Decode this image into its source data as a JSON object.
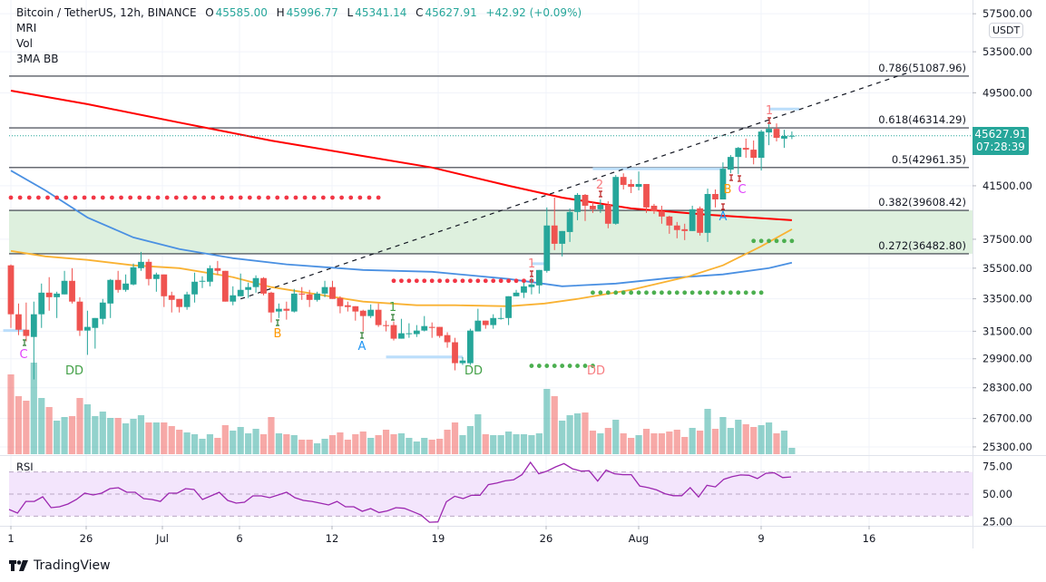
{
  "header": {
    "symbol": "Bitcoin / TetherUS, 12h, BINANCE",
    "o_label": "O",
    "o": "45585.00",
    "h_label": "H",
    "h": "45996.77",
    "l_label": "L",
    "l": "45341.14",
    "c_label": "C",
    "c": "45627.91",
    "change": "+42.92 (+0.09%)",
    "indicators": [
      "MRI",
      "Vol",
      "3MA BB"
    ]
  },
  "price_axis": {
    "currency_badge": "USDT",
    "ticks": [
      "57500.00",
      "53500.00",
      "49500.00",
      "41500.00",
      "37500.00",
      "35500.00",
      "33500.00",
      "31500.00",
      "29900.00",
      "28300.00",
      "26700.00",
      "25300.00"
    ],
    "last_price": "45627.91",
    "countdown": "07:28:39"
  },
  "rsi_pane": {
    "title": "RSI",
    "ticks": [
      "75.00",
      "50.00",
      "25.00"
    ]
  },
  "time_axis": {
    "labels": [
      "1",
      "26",
      "Jul",
      "6",
      "12",
      "19",
      "26",
      "Aug",
      "9",
      "16"
    ]
  },
  "brand": {
    "name": "TradingView"
  },
  "colors": {
    "up": "#26a69a",
    "down": "#ef5350",
    "ma_red": "#ff0000",
    "ma_blue": "#4a90e2",
    "ma_yellow": "#f9b233",
    "rsi": "#9c27b0",
    "fib_zone": "#dcefdc"
  },
  "chart_data": {
    "type": "candlestick",
    "title": "Bitcoin / TetherUS, 12h, BINANCE",
    "y_scale": "log",
    "ylim": [
      25000,
      58500
    ],
    "grid": true,
    "candles_ohlc": [
      [
        35690,
        35750,
        31700,
        32530
      ],
      [
        32530,
        33200,
        31270,
        31590
      ],
      [
        31590,
        33260,
        30900,
        31220
      ],
      [
        31160,
        33320,
        28750,
        32530
      ],
      [
        32530,
        34480,
        31700,
        33890
      ],
      [
        33890,
        34900,
        32750,
        33600
      ],
      [
        33600,
        33950,
        32300,
        33830
      ],
      [
        33780,
        35320,
        33780,
        34660
      ],
      [
        34660,
        35500,
        33200,
        33320
      ],
      [
        33320,
        33600,
        31220,
        31540
      ],
      [
        31540,
        32750,
        30120,
        31760
      ],
      [
        31700,
        32300,
        30480,
        32300
      ],
      [
        32250,
        33490,
        31920,
        33260
      ],
      [
        33200,
        34780,
        32300,
        34720
      ],
      [
        34720,
        35320,
        33890,
        34070
      ],
      [
        34070,
        35080,
        33950,
        34480
      ],
      [
        34420,
        35810,
        34360,
        35560
      ],
      [
        35500,
        36610,
        35320,
        35930
      ],
      [
        35930,
        36120,
        34360,
        34780
      ],
      [
        34780,
        35200,
        33950,
        35080
      ],
      [
        35080,
        35080,
        32980,
        33660
      ],
      [
        33720,
        33950,
        32640,
        33430
      ],
      [
        33490,
        33490,
        32640,
        32980
      ],
      [
        32980,
        33950,
        32810,
        33780
      ],
      [
        33780,
        35200,
        33260,
        34600
      ],
      [
        34600,
        34960,
        34190,
        34660
      ],
      [
        34600,
        35690,
        34300,
        35500
      ],
      [
        35500,
        35990,
        35080,
        35320
      ],
      [
        35320,
        35320,
        33320,
        33320
      ],
      [
        33320,
        34300,
        33090,
        33720
      ],
      [
        33660,
        35140,
        33660,
        34070
      ],
      [
        34070,
        34540,
        33550,
        34250
      ],
      [
        34250,
        35020,
        33890,
        34840
      ],
      [
        34840,
        34900,
        33720,
        33830
      ],
      [
        33890,
        33950,
        32030,
        32640
      ],
      [
        32700,
        33200,
        32300,
        32870
      ],
      [
        32870,
        33320,
        32200,
        32750
      ],
      [
        32700,
        34130,
        32640,
        33830
      ],
      [
        33830,
        34250,
        33430,
        33780
      ],
      [
        33780,
        34070,
        32980,
        33430
      ],
      [
        33430,
        33950,
        33320,
        33830
      ],
      [
        33830,
        34660,
        33600,
        34250
      ],
      [
        34250,
        34660,
        33490,
        33490
      ],
      [
        33550,
        33660,
        32590,
        33030
      ],
      [
        33090,
        33320,
        32700,
        32980
      ],
      [
        33030,
        33030,
        32140,
        32700
      ],
      [
        32750,
        32810,
        31490,
        32420
      ],
      [
        32420,
        33140,
        32300,
        32810
      ],
      [
        32810,
        33200,
        31760,
        31870
      ],
      [
        31870,
        32140,
        31490,
        31810
      ],
      [
        31870,
        32090,
        30950,
        31060
      ],
      [
        31060,
        32250,
        31060,
        31380
      ],
      [
        31330,
        31980,
        31110,
        31380
      ],
      [
        31330,
        31870,
        31160,
        31540
      ],
      [
        31540,
        32420,
        31490,
        31810
      ],
      [
        31760,
        32030,
        31110,
        31700
      ],
      [
        31760,
        31760,
        31110,
        31220
      ],
      [
        31270,
        31440,
        30530,
        30850
      ],
      [
        30850,
        31110,
        29250,
        29650
      ],
      [
        29650,
        30000,
        29550,
        29800
      ],
      [
        29650,
        31650,
        29550,
        31540
      ],
      [
        31490,
        32870,
        31490,
        32140
      ],
      [
        32140,
        32140,
        31650,
        31870
      ],
      [
        31870,
        32530,
        31650,
        32300
      ],
      [
        32250,
        32920,
        32200,
        32300
      ],
      [
        32300,
        33660,
        31870,
        33660
      ],
      [
        33660,
        34070,
        33660,
        33890
      ],
      [
        33890,
        34540,
        33550,
        34300
      ],
      [
        34250,
        34840,
        33780,
        34420
      ],
      [
        34360,
        35380,
        33830,
        35380
      ],
      [
        35320,
        39830,
        35200,
        38490
      ],
      [
        38490,
        40580,
        36740,
        37180
      ],
      [
        37180,
        38090,
        36300,
        38090
      ],
      [
        38020,
        39760,
        37310,
        39490
      ],
      [
        39490,
        40930,
        38880,
        40790
      ],
      [
        40790,
        40860,
        38820,
        39960
      ],
      [
        39960,
        40300,
        39420,
        39690
      ],
      [
        39690,
        40440,
        39420,
        40030
      ],
      [
        40030,
        40300,
        38290,
        38620
      ],
      [
        38620,
        42350,
        38550,
        42200
      ],
      [
        42200,
        42490,
        41210,
        41570
      ],
      [
        41640,
        42000,
        40930,
        41420
      ],
      [
        41420,
        42640,
        41140,
        41640
      ],
      [
        41640,
        41640,
        39420,
        39830
      ],
      [
        39960,
        40100,
        39350,
        39550
      ],
      [
        39550,
        39960,
        38620,
        39150
      ],
      [
        39150,
        39210,
        37890,
        38490
      ],
      [
        38490,
        38750,
        37570,
        38160
      ],
      [
        38220,
        38620,
        37440,
        38090
      ],
      [
        38090,
        39960,
        38090,
        39690
      ],
      [
        39760,
        39900,
        37760,
        37960
      ],
      [
        37960,
        41280,
        37310,
        40860
      ],
      [
        40860,
        41210,
        39830,
        40440
      ],
      [
        40440,
        43380,
        40440,
        42860
      ],
      [
        42790,
        43990,
        42500,
        43830
      ],
      [
        43830,
        44670,
        42420,
        44590
      ],
      [
        44590,
        45380,
        43760,
        44440
      ],
      [
        44440,
        45220,
        43220,
        43760
      ],
      [
        43760,
        46150,
        42720,
        45990
      ],
      [
        45910,
        46630,
        44820,
        46230
      ],
      [
        46230,
        46710,
        45140,
        45450
      ],
      [
        45380,
        46150,
        44590,
        45610
      ],
      [
        45585,
        45996.77,
        45341.14,
        45627.91
      ]
    ],
    "volume_relative": [
      264,
      192,
      177,
      303,
      186,
      156,
      111,
      123,
      126,
      186,
      165,
      126,
      141,
      120,
      120,
      102,
      117,
      129,
      105,
      105,
      105,
      93,
      81,
      72,
      66,
      51,
      66,
      54,
      96,
      78,
      90,
      69,
      84,
      66,
      123,
      69,
      66,
      63,
      48,
      48,
      36,
      51,
      63,
      72,
      48,
      66,
      75,
      54,
      63,
      81,
      66,
      69,
      54,
      42,
      54,
      48,
      51,
      81,
      105,
      63,
      93,
      132,
      66,
      63,
      63,
      75,
      66,
      66,
      63,
      69,
      216,
      192,
      111,
      129,
      135,
      138,
      78,
      69,
      87,
      114,
      69,
      54,
      63,
      84,
      69,
      69,
      75,
      81,
      57,
      87,
      78,
      150,
      84,
      123,
      87,
      114,
      99,
      90,
      96,
      105,
      69,
      78,
      21
    ],
    "moving_averages": [
      {
        "color": "#ff0000",
        "points_bar_price": [
          [
            1,
            49700
          ],
          [
            11,
            48440
          ],
          [
            23,
            46780
          ],
          [
            35,
            45210
          ],
          [
            47,
            43910
          ],
          [
            56,
            42960
          ],
          [
            66,
            41500
          ],
          [
            73,
            40580
          ],
          [
            82,
            39760
          ],
          [
            92,
            39280
          ],
          [
            103,
            38880
          ]
        ]
      },
      {
        "color": "#4a90e2",
        "points_bar_price": [
          [
            1,
            42710
          ],
          [
            5.5,
            41140
          ],
          [
            11,
            39080
          ],
          [
            17,
            37630
          ],
          [
            23,
            36810
          ],
          [
            30,
            36180
          ],
          [
            37,
            35760
          ],
          [
            47,
            35380
          ],
          [
            56,
            35260
          ],
          [
            66,
            34780
          ],
          [
            73,
            34300
          ],
          [
            80,
            34480
          ],
          [
            87,
            34840
          ],
          [
            94,
            35080
          ],
          [
            100,
            35500
          ],
          [
            103,
            35870
          ]
        ]
      },
      {
        "color": "#f9b233",
        "points_bar_price": [
          [
            1,
            36680
          ],
          [
            5.5,
            36300
          ],
          [
            11,
            36060
          ],
          [
            17,
            35690
          ],
          [
            23,
            35500
          ],
          [
            30,
            34900
          ],
          [
            35,
            34250
          ],
          [
            41,
            33780
          ],
          [
            47,
            33320
          ],
          [
            54,
            33090
          ],
          [
            59,
            33090
          ],
          [
            66,
            33030
          ],
          [
            70.7,
            33200
          ],
          [
            75,
            33490
          ],
          [
            82,
            34070
          ],
          [
            89.6,
            34960
          ],
          [
            94,
            35690
          ],
          [
            99,
            37000
          ],
          [
            103,
            38220
          ]
        ]
      }
    ],
    "fib_levels": [
      {
        "label": "0.786(51087.96)",
        "price": 51087.96
      },
      {
        "label": "0.618(46314.29)",
        "price": 46314.29
      },
      {
        "label": "0.5(42961.35)",
        "price": 42961.35
      },
      {
        "label": "0.382(39608.42)",
        "price": 39608.42
      },
      {
        "label": "0.272(36482.80)",
        "price": 36482.8
      }
    ],
    "fib_zone": [
      36482.8,
      39608.42
    ],
    "trendline_bar_price": [
      [
        31,
        33490
      ],
      [
        118,
        51380
      ]
    ],
    "dot_levels": [
      {
        "color": "#f23645",
        "price": 40580,
        "bars": [
          1,
          50
        ]
      },
      {
        "color": "#f23645",
        "price": 34660,
        "bars": [
          51,
          69
        ]
      },
      {
        "color": "#4caf50",
        "price": 33890,
        "bars": [
          77,
          99
        ]
      },
      {
        "color": "#4caf50",
        "price": 29500,
        "bars": [
          69,
          77
        ]
      },
      {
        "color": "#4caf50",
        "price": 37380,
        "bars": [
          98,
          103
        ]
      }
    ],
    "highlight_levels": [
      {
        "price": 31540,
        "bars": [
          0,
          3
        ]
      },
      {
        "price": 30000,
        "bars": [
          50,
          60
        ]
      },
      {
        "price": 42860,
        "bars": [
          77,
          94
        ]
      },
      {
        "price": 48000,
        "bars": [
          100,
          104
        ]
      },
      {
        "price": 35800,
        "bars": [
          69,
          71
        ]
      }
    ],
    "signals": [
      {
        "text": "C",
        "color": "#e040fb"
      },
      {
        "text": "DD",
        "color": "#43a047"
      },
      {
        "text": "B",
        "color": "#ff9800"
      },
      {
        "text": "A",
        "color": "#2196f3"
      },
      {
        "text": "1",
        "color": "#43a047"
      },
      {
        "text": "DD",
        "color": "#43a047"
      },
      {
        "text": "1",
        "color": "#f77c80"
      },
      {
        "text": "2",
        "color": "#f77c80"
      },
      {
        "text": "DD",
        "color": "#f77c80"
      },
      {
        "text": "A",
        "color": "#2196f3"
      },
      {
        "text": "B",
        "color": "#ff9800"
      },
      {
        "text": "C",
        "color": "#e040fb"
      },
      {
        "text": "1",
        "color": "#f77c80"
      }
    ],
    "rsi": {
      "overbought": 70,
      "middle": 50,
      "oversold": 30,
      "ylim": [
        20,
        82
      ],
      "values": [
        36.1,
        32.8,
        43.4,
        43.4,
        47.5,
        37.7,
        38.5,
        41,
        45.1,
        50.8,
        49.2,
        50.8,
        54.9,
        55.7,
        51.6,
        51.6,
        45.9,
        45.1,
        43.4,
        50.8,
        50.8,
        54.9,
        54.1,
        45.1,
        48.4,
        51.6,
        44.3,
        41.8,
        42.6,
        48.4,
        48.4,
        46.7,
        49.2,
        51.6,
        46.7,
        44.3,
        43.4,
        41.8,
        40.2,
        43.4,
        38.5,
        38.5,
        34.4,
        36.9,
        33.3,
        34.8,
        37.7,
        37.1,
        34.2,
        31,
        24.5,
        24.8,
        43,
        48,
        45.9,
        48.9,
        48.9,
        58.5,
        59.9,
        62,
        62.9,
        67.5,
        78.7,
        68.4,
        70.8,
        74.6,
        77.5,
        72.9,
        70.8,
        71.1,
        61.7,
        71.6,
        68.4,
        67.5,
        67.5,
        57.3,
        55.8,
        53.8,
        50.3,
        48.5,
        48.5,
        55.8,
        47.4,
        57.9,
        56.5,
        63.4,
        65.8,
        67.3,
        67,
        64,
        68.8,
        69.3,
        64.9,
        65.5
      ]
    }
  }
}
